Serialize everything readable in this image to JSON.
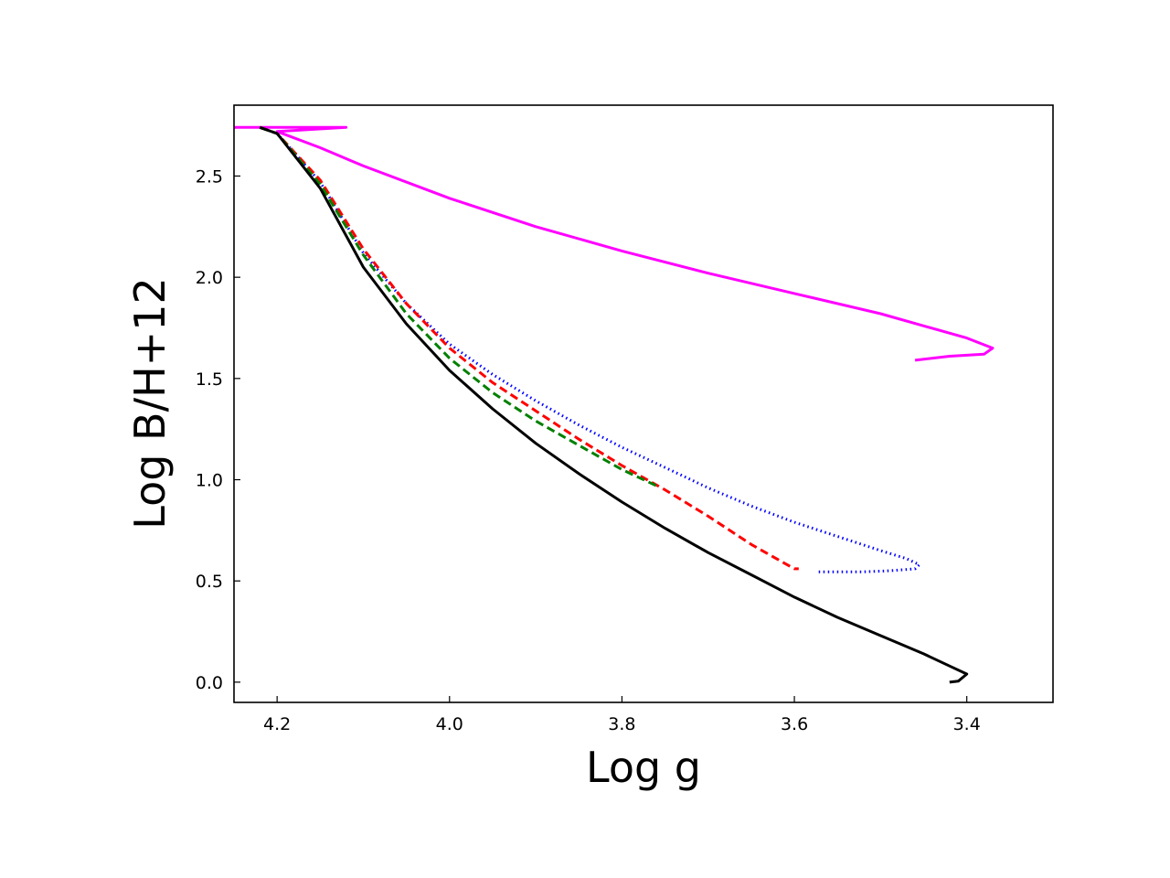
{
  "chart_data": {
    "type": "line",
    "title": "",
    "xlabel": "Log g",
    "ylabel": "Log B/H+12",
    "xlim": [
      4.25,
      3.3
    ],
    "ylim": [
      -0.1,
      2.85
    ],
    "x_inverted": true,
    "xticks": [
      4.2,
      4.0,
      3.8,
      3.6,
      3.4
    ],
    "xtick_labels": [
      "4.2",
      "4.0",
      "3.8",
      "3.6",
      "3.4"
    ],
    "yticks": [
      0.0,
      0.5,
      1.0,
      1.5,
      2.0,
      2.5
    ],
    "ytick_labels": [
      "0.0",
      "0.5",
      "1.0",
      "1.5",
      "2.0",
      "2.5"
    ],
    "grid": false,
    "legend": "none",
    "series": [
      {
        "color": "#ff00ff",
        "style": "solid",
        "x": [
          4.25,
          4.12,
          4.12,
          4.2,
          4.15,
          4.1,
          4.0,
          3.9,
          3.8,
          3.7,
          3.6,
          3.5,
          3.45,
          3.4,
          3.37,
          3.38,
          3.42,
          3.46
        ],
        "y": [
          2.74,
          2.74,
          2.74,
          2.72,
          2.64,
          2.55,
          2.39,
          2.25,
          2.13,
          2.02,
          1.92,
          1.82,
          1.76,
          1.7,
          1.65,
          1.62,
          1.61,
          1.59
        ]
      },
      {
        "color": "#0000ff",
        "style": "dotted",
        "x": [
          4.22,
          4.2,
          4.15,
          4.1,
          4.05,
          4.0,
          3.95,
          3.9,
          3.85,
          3.8,
          3.75,
          3.7,
          3.65,
          3.6,
          3.55,
          3.5,
          3.47,
          3.455,
          3.46,
          3.49,
          3.52,
          3.575
        ],
        "y": [
          2.74,
          2.71,
          2.47,
          2.12,
          1.87,
          1.67,
          1.52,
          1.39,
          1.27,
          1.16,
          1.06,
          0.96,
          0.87,
          0.79,
          0.72,
          0.65,
          0.61,
          0.58,
          0.56,
          0.55,
          0.545,
          0.545
        ]
      },
      {
        "color": "#ff0000",
        "style": "dashed",
        "x": [
          4.22,
          4.2,
          4.15,
          4.1,
          4.05,
          4.0,
          3.95,
          3.9,
          3.85,
          3.8,
          3.75,
          3.7,
          3.65,
          3.6,
          3.595
        ],
        "y": [
          2.74,
          2.71,
          2.48,
          2.14,
          1.87,
          1.65,
          1.48,
          1.34,
          1.2,
          1.07,
          0.95,
          0.82,
          0.68,
          0.56,
          0.56
        ]
      },
      {
        "color": "#008000",
        "style": "dashed",
        "x": [
          4.22,
          4.2,
          4.15,
          4.1,
          4.05,
          4.0,
          3.95,
          3.9,
          3.85,
          3.8,
          3.76
        ],
        "y": [
          2.74,
          2.71,
          2.46,
          2.11,
          1.82,
          1.6,
          1.43,
          1.29,
          1.17,
          1.05,
          0.97
        ]
      },
      {
        "color": "#000000",
        "style": "solid",
        "x": [
          4.22,
          4.2,
          4.15,
          4.1,
          4.05,
          4.0,
          3.95,
          3.9,
          3.85,
          3.8,
          3.75,
          3.7,
          3.65,
          3.6,
          3.55,
          3.5,
          3.45,
          3.42,
          3.4,
          3.41,
          3.42
        ],
        "y": [
          2.74,
          2.71,
          2.44,
          2.05,
          1.77,
          1.54,
          1.35,
          1.18,
          1.03,
          0.89,
          0.76,
          0.64,
          0.53,
          0.42,
          0.32,
          0.23,
          0.14,
          0.08,
          0.04,
          0.005,
          0.0
        ]
      }
    ]
  }
}
